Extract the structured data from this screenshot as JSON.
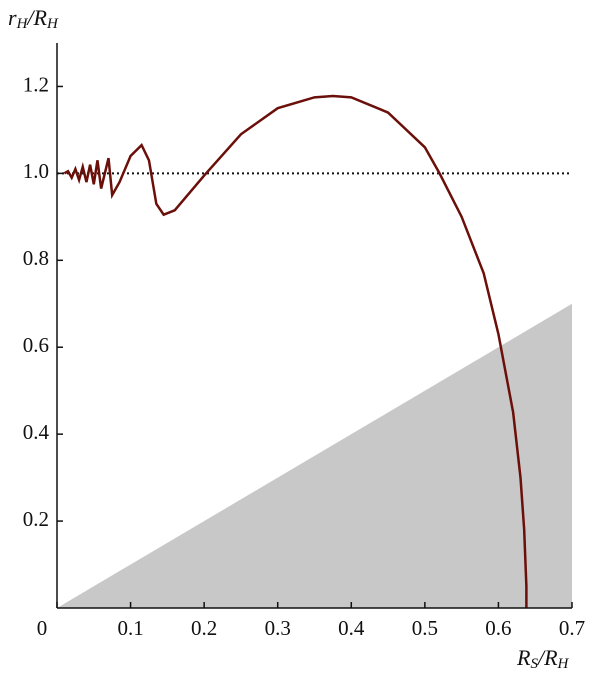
{
  "chart_data": {
    "type": "line",
    "ylabel": [
      "r",
      "H",
      "/R",
      "H"
    ],
    "xlabel": [
      "R",
      "S",
      "/R",
      "H"
    ],
    "xlim": [
      0,
      0.7
    ],
    "ylim": [
      0,
      1.3
    ],
    "xticks": [
      0,
      0.1,
      0.2,
      0.3,
      0.4,
      0.5,
      0.6,
      0.7
    ],
    "yticks": [
      0.2,
      0.4,
      0.6,
      0.8,
      {
        "value": 1,
        "label": "1.0"
      },
      1.2
    ],
    "hline": 1,
    "series": [
      {
        "type": "area",
        "color": "#c8c8c8",
        "x": [
          0,
          0.7
        ],
        "values": [
          0,
          0.7
        ]
      },
      {
        "type": "line",
        "color": "#6b0f0a",
        "x": [
          0.01,
          0.015,
          0.02,
          0.025,
          0.03,
          0.035,
          0.04,
          0.045,
          0.05,
          0.055,
          0.06,
          0.07,
          0.075,
          0.085,
          0.1,
          0.115,
          0.125,
          0.135,
          0.145,
          0.16,
          0.2,
          0.25,
          0.3,
          0.35,
          0.375,
          0.4,
          0.45,
          0.5,
          0.52,
          0.55,
          0.58,
          0.6,
          0.62,
          0.63,
          0.635,
          0.638,
          0.638
        ],
        "values": [
          1.0,
          1.005,
          0.99,
          1.01,
          0.985,
          1.015,
          0.98,
          1.02,
          0.975,
          1.03,
          0.965,
          1.035,
          0.95,
          0.98,
          1.04,
          1.065,
          1.03,
          0.93,
          0.905,
          0.915,
          0.995,
          1.09,
          1.15,
          1.175,
          1.178,
          1.175,
          1.14,
          1.06,
          1.0,
          0.9,
          0.77,
          0.63,
          0.45,
          0.3,
          0.18,
          0.05,
          0
        ]
      }
    ]
  }
}
